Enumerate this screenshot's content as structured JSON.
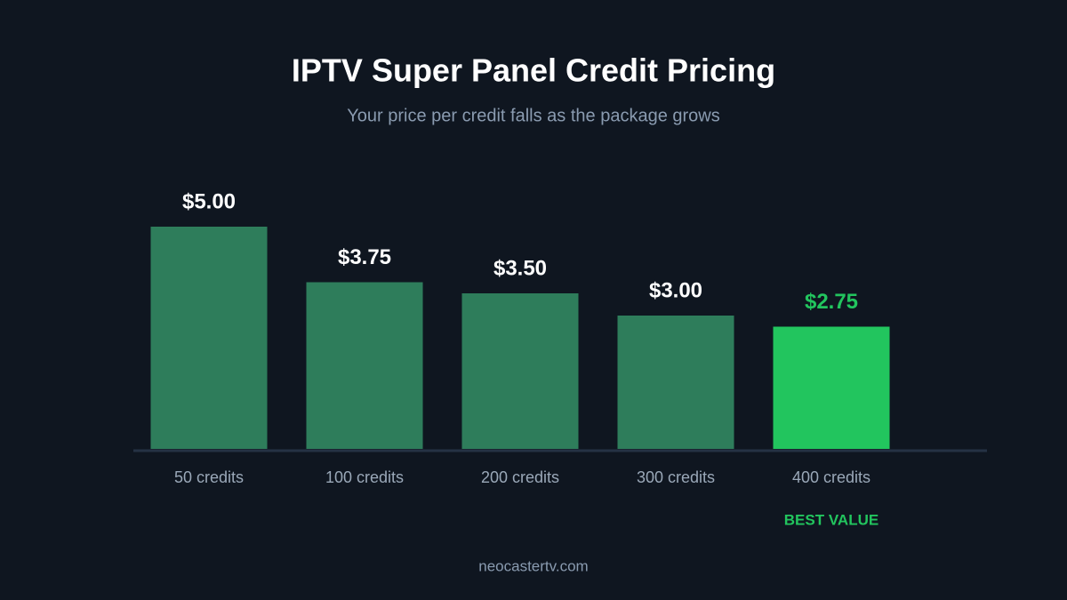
{
  "chart_data": {
    "type": "bar",
    "title": "IPTV Super Panel Credit Pricing",
    "subtitle": "Your price per credit falls as the package grows",
    "categories": [
      "50 credits",
      "100 credits",
      "200 credits",
      "300 credits",
      "400 credits"
    ],
    "values": [
      5.0,
      3.75,
      3.5,
      3.0,
      2.75
    ],
    "value_labels": [
      "$5.00",
      "$3.75",
      "$3.50",
      "$3.00",
      "$2.75"
    ],
    "colors": [
      "#2e7d5b",
      "#2e7d5b",
      "#2e7d5b",
      "#2e7d5b",
      "#22c55e"
    ],
    "value_label_colors": [
      "#ffffff",
      "#ffffff",
      "#ffffff",
      "#ffffff",
      "#22c55e"
    ],
    "ylim": [
      0,
      5
    ],
    "annotations": [
      {
        "text": "BEST VALUE",
        "x": "400 credits",
        "color": "#22c55e"
      }
    ],
    "footer": "neocastertv.com"
  }
}
